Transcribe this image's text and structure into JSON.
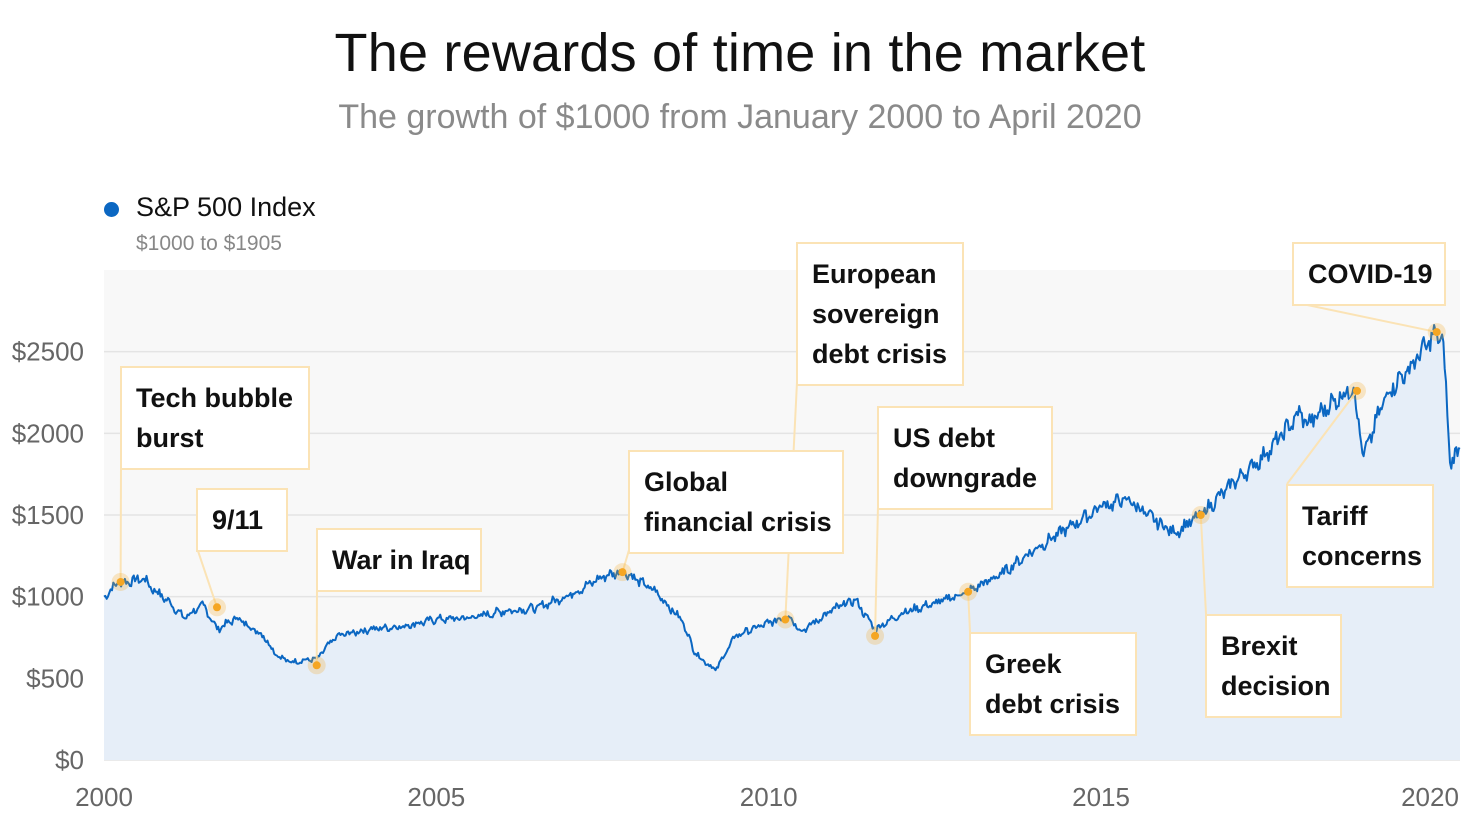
{
  "chart_data": {
    "type": "line",
    "title": "The rewards of time in the market",
    "subtitle": "The growth of $1000 from January 2000 to April 2020",
    "series": [
      {
        "name": "S&P 500 Index",
        "range_label": "$1000 to $1905",
        "color": "#0b67c2",
        "x": [
          2000.0,
          2000.2,
          2000.6,
          2000.7,
          2001.0,
          2001.2,
          2001.5,
          2001.7,
          2002.0,
          2002.4,
          2002.6,
          2002.8,
          2003.2,
          2003.5,
          2004.0,
          2004.5,
          2005.0,
          2005.5,
          2006.0,
          2006.5,
          2007.0,
          2007.5,
          2007.8,
          2008.3,
          2008.7,
          2008.9,
          2009.2,
          2009.5,
          2010.0,
          2010.3,
          2010.5,
          2011.0,
          2011.3,
          2011.6,
          2012.0,
          2012.5,
          2013.0,
          2013.5,
          2014.0,
          2014.5,
          2015.0,
          2015.4,
          2015.7,
          2016.1,
          2016.5,
          2017.0,
          2017.5,
          2018.0,
          2018.1,
          2018.5,
          2018.8,
          2018.95,
          2019.3,
          2019.6,
          2020.05,
          2020.15,
          2020.25,
          2020.4
        ],
        "y": [
          1000,
          1080,
          1110,
          1060,
          960,
          870,
          950,
          800,
          870,
          760,
          640,
          600,
          620,
          760,
          800,
          820,
          860,
          870,
          910,
          930,
          1010,
          1120,
          1160,
          1030,
          850,
          650,
          550,
          760,
          840,
          880,
          790,
          930,
          980,
          800,
          900,
          960,
          1030,
          1140,
          1290,
          1420,
          1550,
          1600,
          1500,
          1390,
          1500,
          1700,
          1880,
          2130,
          2050,
          2200,
          2280,
          1860,
          2250,
          2380,
          2620,
          2560,
          1820,
          1905
        ]
      }
    ],
    "yticks": [
      "$0",
      "$500",
      "$1000",
      "$1500",
      "$2000",
      "$2500"
    ],
    "ytick_values": [
      0,
      500,
      1000,
      1500,
      2000,
      2500
    ],
    "xticks": [
      "2000",
      "2005",
      "2010",
      "2015",
      "2020"
    ],
    "xtick_values": [
      2000,
      2005,
      2010,
      2015,
      2020
    ],
    "xlim": [
      2000,
      2020.4
    ],
    "ylim": [
      0,
      3000
    ],
    "grid": true,
    "legend_position": "top-left",
    "annotations": [
      {
        "label": "Tech bubble burst",
        "lines": [
          "Tech bubble",
          "burst"
        ],
        "x": 2000.25,
        "y": 1090
      },
      {
        "label": "9/11",
        "lines": [
          "9/11"
        ],
        "x": 2001.7,
        "y": 935
      },
      {
        "label": "War in Iraq",
        "lines": [
          "War in Iraq"
        ],
        "x": 2003.2,
        "y": 580
      },
      {
        "label": "Global financial crisis",
        "lines": [
          "Global",
          "financial crisis"
        ],
        "x": 2007.8,
        "y": 1150
      },
      {
        "label": "European sovereign debt crisis",
        "lines": [
          "European",
          "sovereign",
          "debt crisis"
        ],
        "x": 2010.25,
        "y": 860
      },
      {
        "label": "US debt downgrade",
        "lines": [
          "US debt",
          "downgrade"
        ],
        "x": 2011.6,
        "y": 760
      },
      {
        "label": "Greek debt crisis",
        "lines": [
          "Greek",
          "debt crisis"
        ],
        "x": 2013.0,
        "y": 1030
      },
      {
        "label": "Brexit decision",
        "lines": [
          "Brexit",
          "decision"
        ],
        "x": 2016.5,
        "y": 1500
      },
      {
        "label": "Tariff concerns",
        "lines": [
          "Tariff",
          "concerns"
        ],
        "x": 2018.85,
        "y": 2260
      },
      {
        "label": "COVID-19",
        "lines": [
          "COVID-19"
        ],
        "x": 2020.05,
        "y": 2620
      }
    ],
    "colors": {
      "line": "#0b67c2",
      "area": "#e6eef8",
      "annotation_dot": "#f5a623",
      "annotation_border": "#fbe3b5",
      "grid": "#e4e4e4"
    }
  }
}
